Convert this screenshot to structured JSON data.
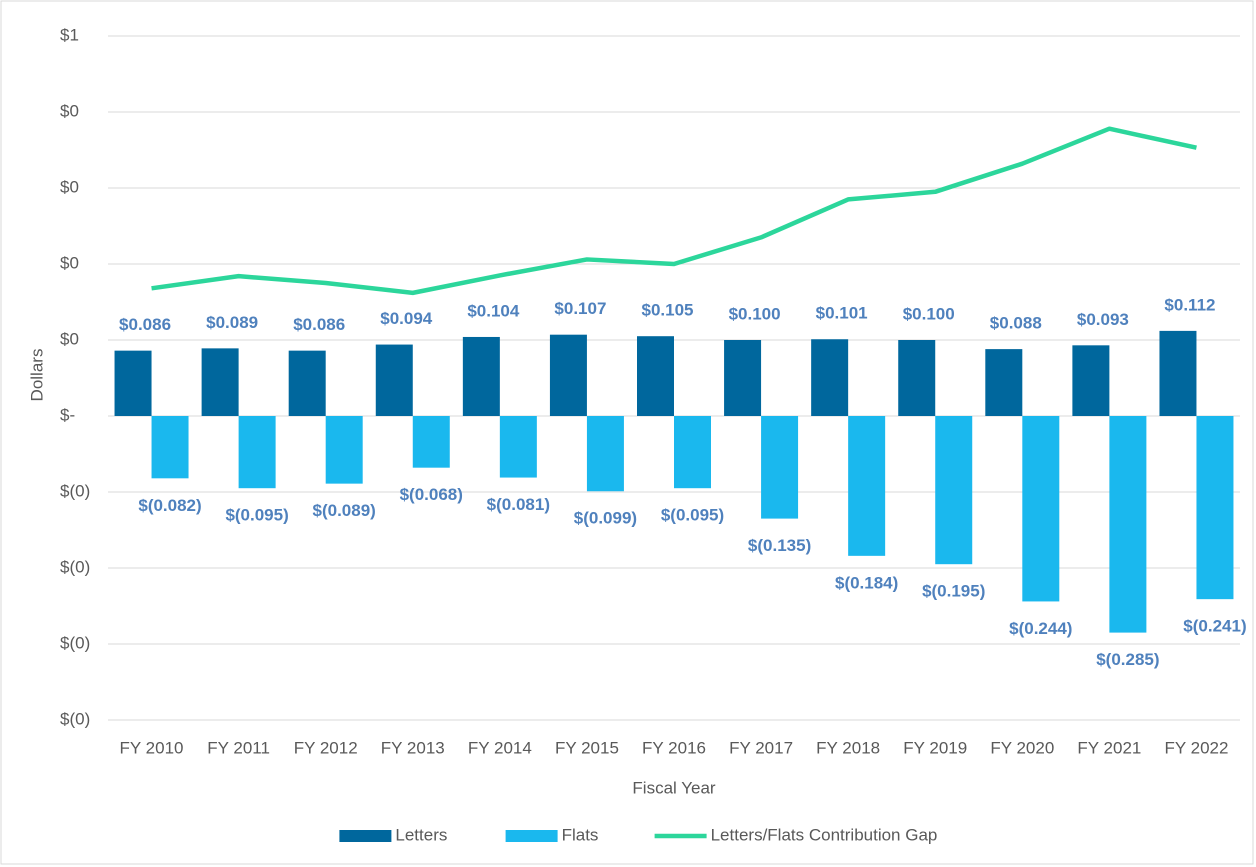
{
  "chart_data": {
    "type": "bar_line",
    "categories": [
      "FY 2010",
      "FY 2011",
      "FY 2012",
      "FY 2013",
      "FY 2014",
      "FY 2015",
      "FY 2016",
      "FY 2017",
      "FY 2018",
      "FY 2019",
      "FY 2020",
      "FY 2021",
      "FY 2022"
    ],
    "series": [
      {
        "name": "Letters",
        "type": "bar",
        "color": "#00679d",
        "values": [
          0.086,
          0.089,
          0.086,
          0.094,
          0.104,
          0.107,
          0.105,
          0.1,
          0.101,
          0.1,
          0.088,
          0.093,
          0.112
        ],
        "value_labels": [
          "$0.086",
          "$0.089",
          "$0.086",
          "$0.094",
          "$0.104",
          "$0.107",
          "$0.105",
          "$0.100",
          "$0.101",
          "$0.100",
          "$0.088",
          "$0.093",
          "$0.112"
        ]
      },
      {
        "name": "Flats",
        "type": "bar",
        "color": "#1ab8ee",
        "values": [
          -0.082,
          -0.095,
          -0.089,
          -0.068,
          -0.081,
          -0.099,
          -0.095,
          -0.135,
          -0.184,
          -0.195,
          -0.244,
          -0.285,
          -0.241
        ],
        "value_labels": [
          "$(0.082)",
          "$(0.095)",
          "$(0.089)",
          "$(0.068)",
          "$(0.081)",
          "$(0.099)",
          "$(0.095)",
          "$(0.135)",
          "$(0.184)",
          "$(0.195)",
          "$(0.244)",
          "$(0.285)",
          "$(0.241)"
        ]
      },
      {
        "name": "Letters/Flats Contribution Gap",
        "type": "line",
        "color": "#2cd69b",
        "values": [
          0.168,
          0.184,
          0.175,
          0.162,
          0.185,
          0.206,
          0.2,
          0.235,
          0.285,
          0.295,
          0.332,
          0.378,
          0.353
        ]
      }
    ],
    "x_label": "Fiscal Year",
    "y_label": "Dollars",
    "ylim": [
      -0.4,
      0.5
    ],
    "yticks": [
      {
        "value": -0.4,
        "label": "$(0)"
      },
      {
        "value": -0.3,
        "label": "$(0)"
      },
      {
        "value": -0.2,
        "label": "$(0)"
      },
      {
        "value": -0.1,
        "label": "$(0)"
      },
      {
        "value": 0,
        "label": "$-"
      },
      {
        "value": 0.1,
        "label": "$0"
      },
      {
        "value": 0.2,
        "label": "$0"
      },
      {
        "value": 0.3,
        "label": "$0"
      },
      {
        "value": 0.4,
        "label": "$0"
      },
      {
        "value": 0.5,
        "label": "$1"
      }
    ],
    "grid": true,
    "legend": "bottom"
  }
}
